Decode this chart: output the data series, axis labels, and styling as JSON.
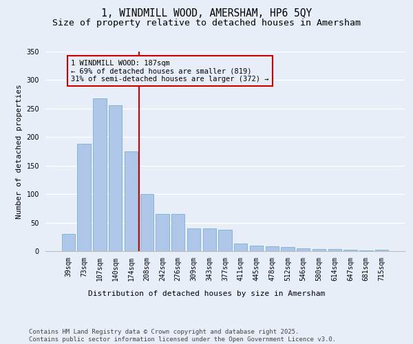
{
  "title_line1": "1, WINDMILL WOOD, AMERSHAM, HP6 5QY",
  "title_line2": "Size of property relative to detached houses in Amersham",
  "xlabel": "Distribution of detached houses by size in Amersham",
  "ylabel": "Number of detached properties",
  "categories": [
    "39sqm",
    "73sqm",
    "107sqm",
    "140sqm",
    "174sqm",
    "208sqm",
    "242sqm",
    "276sqm",
    "309sqm",
    "343sqm",
    "377sqm",
    "411sqm",
    "445sqm",
    "478sqm",
    "512sqm",
    "546sqm",
    "580sqm",
    "614sqm",
    "647sqm",
    "681sqm",
    "715sqm"
  ],
  "values": [
    30,
    188,
    268,
    256,
    175,
    100,
    65,
    65,
    40,
    40,
    38,
    13,
    10,
    9,
    7,
    5,
    4,
    4,
    2,
    1,
    2
  ],
  "bar_color": "#aec6e8",
  "bar_edge_color": "#7aafd4",
  "vline_x_idx": 4.5,
  "vline_color": "#cc0000",
  "annotation_text_line1": "1 WINDMILL WOOD: 187sqm",
  "annotation_text_line2": "← 69% of detached houses are smaller (819)",
  "annotation_text_line3": "31% of semi-detached houses are larger (372) →",
  "annotation_box_edge_color": "#cc0000",
  "ylim": [
    0,
    350
  ],
  "yticks": [
    0,
    50,
    100,
    150,
    200,
    250,
    300,
    350
  ],
  "background_color": "#e8eef7",
  "grid_color": "#ffffff",
  "footer_text": "Contains HM Land Registry data © Crown copyright and database right 2025.\nContains public sector information licensed under the Open Government Licence v3.0.",
  "title_fontsize": 10.5,
  "subtitle_fontsize": 9.5,
  "axis_label_fontsize": 8,
  "tick_fontsize": 7,
  "annotation_fontsize": 7.5,
  "footer_fontsize": 6.5
}
